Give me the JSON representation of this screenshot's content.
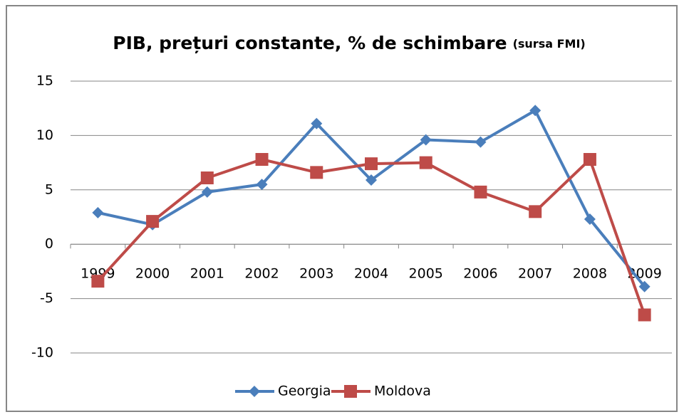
{
  "chart_data": {
    "type": "line",
    "title": "PIB, prețuri constante, % de schimbare",
    "subtitle": "(sursa FMI)",
    "categories": [
      "1999",
      "2000",
      "2001",
      "2002",
      "2003",
      "2004",
      "2005",
      "2006",
      "2007",
      "2008",
      "2009"
    ],
    "series": [
      {
        "name": "Georgia",
        "color": "#4a7ebb",
        "marker": "diamond",
        "values": [
          2.9,
          1.8,
          4.8,
          5.5,
          11.1,
          5.9,
          9.6,
          9.4,
          12.3,
          2.3,
          -3.9
        ]
      },
      {
        "name": "Moldova",
        "color": "#be4b48",
        "marker": "square",
        "values": [
          -3.4,
          2.1,
          6.1,
          7.8,
          6.6,
          7.4,
          7.5,
          4.8,
          3.0,
          7.8,
          -6.5
        ]
      }
    ],
    "ylim": [
      -10,
      15
    ],
    "yticks": [
      -10,
      -5,
      0,
      5,
      10,
      15
    ],
    "grid": true,
    "legend": "bottom"
  }
}
